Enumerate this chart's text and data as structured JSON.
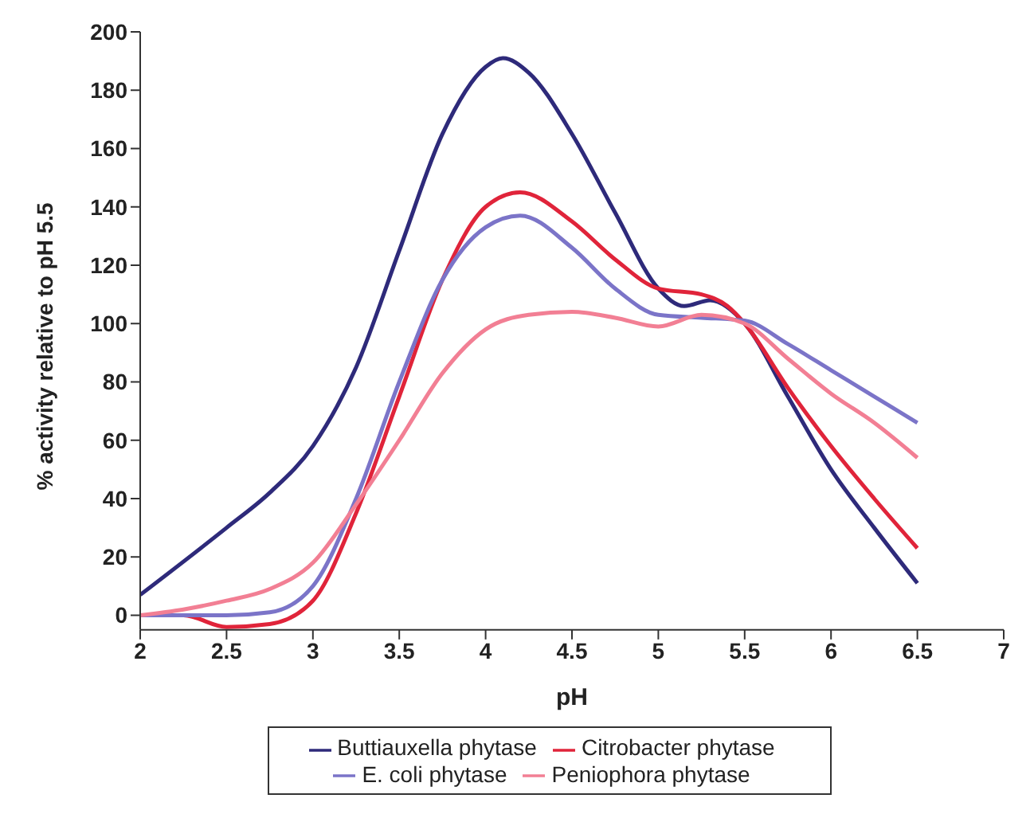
{
  "chart_data": {
    "type": "line",
    "xlabel": "pH",
    "ylabel": "% activity relative to pH 5.5",
    "xlim": [
      2,
      7
    ],
    "xticks": [
      2,
      2.5,
      3,
      3.5,
      4,
      4.5,
      5,
      5.5,
      6,
      6.5,
      7
    ],
    "ylim": [
      -5,
      200
    ],
    "yticks": [
      0,
      20,
      40,
      60,
      80,
      100,
      120,
      140,
      160,
      180,
      200
    ],
    "grid": false,
    "legend": "bottom",
    "marker": "none",
    "line_style": "solid",
    "series": [
      {
        "name": "Buttiauxella phytase",
        "color": "#2e2a7a",
        "x": [
          2,
          2.5,
          2.75,
          3,
          3.25,
          3.5,
          3.75,
          4,
          4.1,
          4.25,
          4.5,
          4.75,
          5,
          5.15,
          5.3,
          5.5,
          5.75,
          6,
          6.25,
          6.5
        ],
        "values": [
          7,
          30,
          42,
          58,
          85,
          125,
          165,
          188,
          191,
          186,
          165,
          138,
          112,
          106,
          108,
          100,
          75,
          50,
          30,
          11
        ]
      },
      {
        "name": "Citrobacter phytase",
        "color": "#e0243a",
        "x": [
          2,
          2.25,
          2.5,
          2.75,
          3,
          3.25,
          3.5,
          3.75,
          4,
          4.2,
          4.5,
          4.75,
          5,
          5.25,
          5.4,
          5.5,
          5.75,
          6,
          6.25,
          6.5
        ],
        "values": [
          0,
          0,
          -4,
          -3,
          5,
          35,
          75,
          115,
          140,
          145,
          135,
          122,
          112,
          110,
          106,
          100,
          78,
          58,
          40,
          23
        ]
      },
      {
        "name": "E. coli phytase",
        "color": "#7b74c8",
        "x": [
          2,
          2.5,
          2.75,
          3,
          3.25,
          3.5,
          3.75,
          4,
          4.2,
          4.5,
          4.75,
          5,
          5.25,
          5.5,
          5.75,
          6,
          6.25,
          6.5
        ],
        "values": [
          0,
          0,
          1,
          10,
          40,
          80,
          115,
          133,
          137,
          126,
          112,
          103,
          102,
          101,
          93,
          84,
          75,
          66
        ]
      },
      {
        "name": "Peniophora phytase",
        "color": "#f27f94",
        "x": [
          2,
          2.25,
          2.5,
          2.75,
          3,
          3.25,
          3.5,
          3.75,
          4,
          4.25,
          4.5,
          4.75,
          5,
          5.25,
          5.5,
          5.75,
          6,
          6.25,
          6.5
        ],
        "values": [
          0,
          2,
          5,
          9,
          18,
          38,
          60,
          83,
          98,
          103,
          104,
          102,
          99,
          103,
          100,
          88,
          76,
          66,
          54
        ]
      }
    ]
  }
}
